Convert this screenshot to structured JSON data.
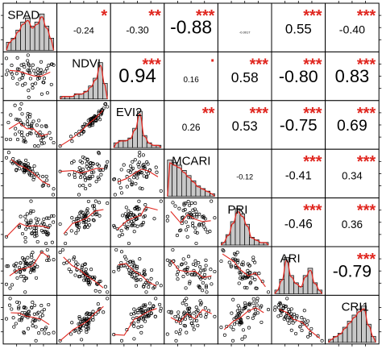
{
  "chart_data": {
    "type": "scatter",
    "subtype": "correlation-matrix",
    "title": "",
    "variables": [
      "SPAD",
      "NDVI",
      "EVI2",
      "MCARI",
      "PRI",
      "ARI",
      "CRI1"
    ],
    "upper": [
      {
        "row": 0,
        "col": 1,
        "r": "-0.24",
        "stars": "*"
      },
      {
        "row": 0,
        "col": 2,
        "r": "-0.30",
        "stars": "**"
      },
      {
        "row": 0,
        "col": 3,
        "r": "-0.88",
        "stars": "***"
      },
      {
        "row": 0,
        "col": 4,
        "r": "-0.0017",
        "stars": ""
      },
      {
        "row": 0,
        "col": 5,
        "r": "0.55",
        "stars": "***"
      },
      {
        "row": 0,
        "col": 6,
        "r": "-0.40",
        "stars": "***"
      },
      {
        "row": 1,
        "col": 2,
        "r": "0.94",
        "stars": "***"
      },
      {
        "row": 1,
        "col": 3,
        "r": "0.16",
        "stars": "."
      },
      {
        "row": 1,
        "col": 4,
        "r": "0.58",
        "stars": "***"
      },
      {
        "row": 1,
        "col": 5,
        "r": "-0.80",
        "stars": "***"
      },
      {
        "row": 1,
        "col": 6,
        "r": "0.83",
        "stars": "***"
      },
      {
        "row": 2,
        "col": 3,
        "r": "0.26",
        "stars": "**"
      },
      {
        "row": 2,
        "col": 4,
        "r": "0.53",
        "stars": "***"
      },
      {
        "row": 2,
        "col": 5,
        "r": "-0.75",
        "stars": "***"
      },
      {
        "row": 2,
        "col": 6,
        "r": "0.69",
        "stars": "***"
      },
      {
        "row": 3,
        "col": 4,
        "r": "-0.12",
        "stars": ""
      },
      {
        "row": 3,
        "col": 5,
        "r": "-0.41",
        "stars": "***"
      },
      {
        "row": 3,
        "col": 6,
        "r": "0.34",
        "stars": "***"
      },
      {
        "row": 4,
        "col": 5,
        "r": "-0.46",
        "stars": "***"
      },
      {
        "row": 4,
        "col": 6,
        "r": "0.36",
        "stars": "***"
      },
      {
        "row": 5,
        "col": 6,
        "r": "-0.79",
        "stars": "***"
      }
    ],
    "histograms": [
      [
        2,
        3,
        5,
        7,
        8,
        6,
        7,
        9,
        6,
        3
      ],
      [
        1,
        1,
        1,
        2,
        2,
        3,
        5,
        8,
        14,
        6
      ],
      [
        2,
        3,
        3,
        4,
        8,
        15,
        5,
        2,
        1,
        1
      ],
      [
        14,
        13,
        12,
        10,
        8,
        6,
        4,
        3,
        2,
        1
      ],
      [
        1,
        4,
        9,
        14,
        12,
        8,
        3,
        2,
        1,
        1
      ],
      [
        1,
        4,
        10,
        5,
        3,
        2,
        5,
        7,
        3,
        1
      ],
      [
        1,
        2,
        3,
        5,
        7,
        9,
        11,
        12,
        6,
        2
      ]
    ],
    "colors": {
      "points": "#000000",
      "smooth": "#e0261f",
      "histogram_bar": "#c8c8c8",
      "density": "#e0261f",
      "stars": "#e0261f"
    },
    "grid": false,
    "legend": "none"
  }
}
